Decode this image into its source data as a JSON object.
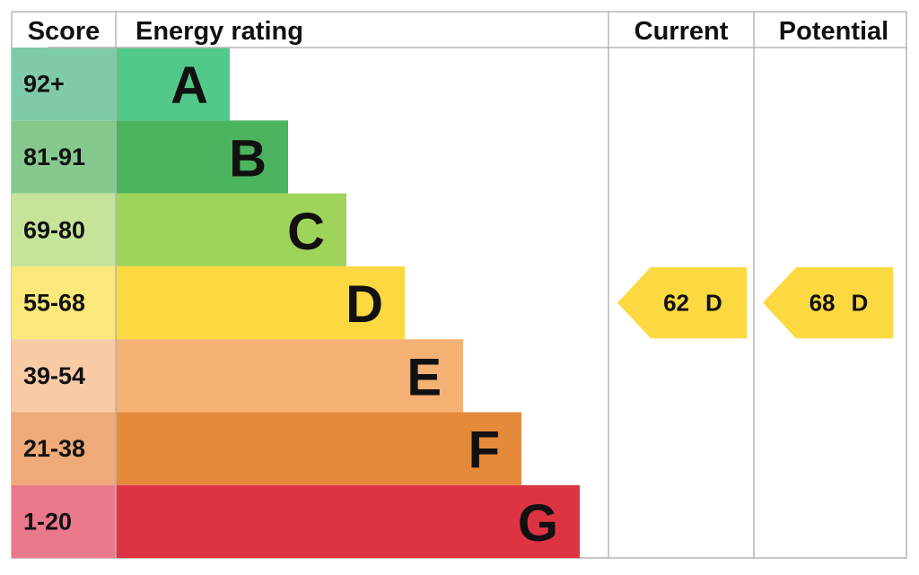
{
  "chart_data": {
    "type": "epc",
    "headers": {
      "score": "Score",
      "rating": "Energy rating",
      "current": "Current",
      "potential": "Potential"
    },
    "bands": [
      {
        "score": "92+",
        "letter": "A",
        "color": "#52c98b",
        "score_color": "#7fcba9"
      },
      {
        "score": "81-91",
        "letter": "B",
        "color": "#4cb35e",
        "score_color": "#86c98e"
      },
      {
        "score": "69-80",
        "letter": "C",
        "color": "#9fd45a",
        "score_color": "#c5e49a"
      },
      {
        "score": "55-68",
        "letter": "D",
        "color": "#fcd841",
        "score_color": "#fbe87a"
      },
      {
        "score": "39-54",
        "letter": "E",
        "color": "#f5b074",
        "score_color": "#f8cba5"
      },
      {
        "score": "21-38",
        "letter": "F",
        "color": "#e58a3a",
        "score_color": "#eeaa78"
      },
      {
        "score": "1-20",
        "letter": "G",
        "color": "#dd3444",
        "score_color": "#e9798b"
      }
    ],
    "current": {
      "value": 62,
      "letter": "D"
    },
    "potential": {
      "value": 68,
      "letter": "D"
    }
  }
}
